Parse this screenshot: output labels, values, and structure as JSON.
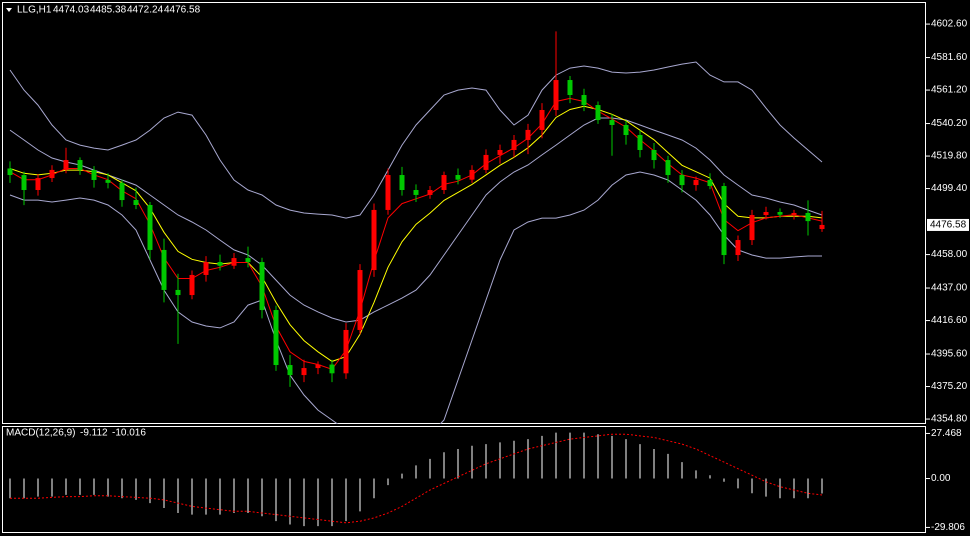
{
  "chart_data": [
    {
      "type": "candlestick",
      "title": "LLG,H1",
      "ohlc_readout": [
        4474.03,
        4485.38,
        4472.24,
        4476.58
      ],
      "up_color": "#ff0000",
      "down_color": "#00c800",
      "open": [
        4512.0,
        4507.9,
        4498.5,
        4506.0,
        4511.1,
        4517.3,
        4511.1,
        4504.8,
        4503.0,
        4492.2,
        4489.1,
        4460.9,
        4435.8,
        4432.6,
        4445.2,
        4453.3,
        4451.0,
        4455.8,
        4453.3,
        4423.2,
        4388.7,
        4382.4,
        4386.8,
        4389.0,
        4383.5,
        4410.7,
        4448.3,
        4486.0,
        4507.9,
        4498.5,
        4495.4,
        4498.5,
        4507.9,
        4505.0,
        4511.1,
        4520.5,
        4523.6,
        4529.9,
        4536.2,
        4548.7,
        4567.5,
        4558.1,
        4551.8,
        4542.4,
        4539.3,
        4533.0,
        4523.6,
        4517.3,
        4507.9,
        4501.6,
        4504.8,
        4501.0,
        4457.7,
        4467.1,
        4482.8,
        4484.7,
        4483.0,
        4484.1,
        4474.03
      ],
      "high": [
        4516.5,
        4510.0,
        4508.5,
        4514.0,
        4525.0,
        4519.0,
        4513.5,
        4509.0,
        4505.0,
        4500.0,
        4491.0,
        4468.0,
        4446.0,
        4448.0,
        4457.0,
        4458.0,
        4459.0,
        4463.0,
        4456.0,
        4426.0,
        4395.0,
        4392.0,
        4391.0,
        4392.0,
        4415.0,
        4452.0,
        4490.0,
        4512.0,
        4513.0,
        4502.0,
        4501.0,
        4510.0,
        4512.0,
        4514.0,
        4524.0,
        4527.0,
        4533.0,
        4540.0,
        4553.0,
        4598.0,
        4570.0,
        4562.0,
        4554.0,
        4546.0,
        4542.0,
        4536.0,
        4528.0,
        4520.0,
        4511.0,
        4507.0,
        4509.0,
        4503.0,
        4470.0,
        4486.0,
        4488.0,
        4487.0,
        4486.0,
        4492.0,
        4485.38
      ],
      "low": [
        4503.0,
        4489.0,
        4495.0,
        4503.5,
        4509.0,
        4508.0,
        4500.0,
        4499.5,
        4488.0,
        4486.5,
        4455.0,
        4428.0,
        4402.0,
        4430.0,
        4441.0,
        4448.0,
        4449.0,
        4450.0,
        4418.0,
        4385.0,
        4375.0,
        4378.0,
        4383.0,
        4378.0,
        4380.0,
        4408.0,
        4444.0,
        4483.0,
        4495.0,
        4491.0,
        4493.0,
        4496.0,
        4502.0,
        4503.0,
        4509.0,
        4515.0,
        4519.0,
        4521.0,
        4531.0,
        4545.0,
        4553.0,
        4548.0,
        4540.0,
        4520.0,
        4527.0,
        4519.0,
        4512.0,
        4503.0,
        4497.0,
        4498.0,
        4499.0,
        4452.0,
        4454.0,
        4464.0,
        4480.0,
        4481.0,
        4480.0,
        4470.0,
        4472.24
      ],
      "close": [
        4507.9,
        4498.5,
        4506.0,
        4511.1,
        4517.3,
        4511.1,
        4504.8,
        4503.0,
        4492.2,
        4489.1,
        4460.9,
        4435.8,
        4432.6,
        4445.2,
        4453.3,
        4451.0,
        4455.8,
        4453.3,
        4423.2,
        4388.7,
        4382.4,
        4386.8,
        4389.0,
        4383.5,
        4410.7,
        4448.3,
        4486.0,
        4507.9,
        4498.5,
        4495.4,
        4498.5,
        4507.9,
        4505.0,
        4511.1,
        4520.5,
        4523.6,
        4529.9,
        4536.2,
        4548.7,
        4567.5,
        4558.1,
        4551.8,
        4542.4,
        4539.3,
        4533.0,
        4523.6,
        4517.3,
        4507.9,
        4501.6,
        4504.8,
        4501.0,
        4457.7,
        4467.1,
        4482.8,
        4484.7,
        4483.0,
        4484.1,
        4479.0,
        4476.58
      ],
      "overlays": [
        {
          "color": "#a8a8d0",
          "values": [
            4573.8,
            4561.2,
            4551.8,
            4539.3,
            4529.9,
            4526.7,
            4524.8,
            4523.6,
            4526.7,
            4529.9,
            4536.1,
            4543.7,
            4547.4,
            4545.5,
            4533.0,
            4517.3,
            4504.8,
            4498.5,
            4495.4,
            4489.1,
            4485.9,
            4484.1,
            4483.4,
            4482.8,
            4480.9,
            4482.8,
            4495.4,
            4511.0,
            4526.7,
            4539.3,
            4548.7,
            4558.1,
            4561.2,
            4562.5,
            4561.2,
            4548.7,
            4539.3,
            4545.5,
            4561.2,
            4570.6,
            4575.0,
            4576.3,
            4575.0,
            4572.5,
            4571.9,
            4572.5,
            4573.8,
            4575.7,
            4577.5,
            4578.8,
            4570.6,
            4566.3,
            4566.3,
            4561.2,
            4549.9,
            4539.3,
            4531.1,
            4523.6,
            4516.1
          ]
        },
        {
          "color": "#a8a8d0",
          "values": [
            4536.1,
            4529.9,
            4523.6,
            4518.6,
            4516.1,
            4514.2,
            4511.0,
            4507.9,
            4504.8,
            4501.6,
            4495.4,
            4489.1,
            4482.8,
            4478.4,
            4473.4,
            4467.1,
            4460.9,
            4457.7,
            4451.4,
            4442.0,
            4432.6,
            4426.3,
            4422.0,
            4418.2,
            4415.7,
            4416.9,
            4422.0,
            4426.3,
            4430.7,
            4435.7,
            4445.2,
            4457.7,
            4470.3,
            4482.8,
            4495.4,
            4503.5,
            4509.8,
            4514.2,
            4520.5,
            4526.7,
            4533.0,
            4539.3,
            4543.7,
            4543.7,
            4542.4,
            4539.3,
            4536.1,
            4533.0,
            4529.9,
            4524.8,
            4517.3,
            4507.9,
            4501.6,
            4495.4,
            4493.5,
            4491.0,
            4489.1,
            4485.9,
            4482.8
          ]
        },
        {
          "color": "#a8a8d0",
          "values": [
            4495.4,
            4492.2,
            4492.2,
            4491.0,
            4492.2,
            4493.5,
            4492.2,
            4489.1,
            4482.8,
            4473.4,
            4454.6,
            4435.7,
            4422.0,
            4415.7,
            4413.2,
            4412.0,
            4415.7,
            4426.3,
            4429.5,
            4404.4,
            4382.4,
            4369.9,
            4360.4,
            4354.2,
            4347.9,
            4341.6,
            4338.5,
            4335.4,
            4335.4,
            4338.5,
            4344.8,
            4354.2,
            4379.3,
            4404.4,
            4429.5,
            4454.6,
            4473.4,
            4478.4,
            4480.9,
            4480.9,
            4482.8,
            4485.9,
            4492.2,
            4501.6,
            4507.9,
            4509.8,
            4507.9,
            4504.8,
            4498.5,
            4492.2,
            4482.8,
            4470.3,
            4460.9,
            4457.7,
            4455.8,
            4455.8,
            4456.5,
            4457.1,
            4457.1
          ]
        },
        {
          "color": "#ffff00",
          "values": [
            4512,
            4509,
            4508,
            4509,
            4511,
            4511,
            4510,
            4508,
            4503,
            4498,
            4487,
            4472,
            4460,
            4455,
            4453,
            4452,
            4453,
            4453,
            4444,
            4428,
            4414,
            4404,
            4397,
            4391,
            4394,
            4408,
            4428,
            4450,
            4466,
            4477,
            4484,
            4492,
            4497,
            4502,
            4508,
            4514,
            4519,
            4525,
            4533,
            4544,
            4549,
            4551,
            4549,
            4546,
            4542,
            4536,
            4530,
            4522,
            4514,
            4510,
            4506,
            4490,
            4482,
            4481,
            4481,
            4482,
            4482,
            4482,
            4481
          ]
        },
        {
          "color": "#ff0000",
          "values": [
            4510,
            4505,
            4505,
            4508,
            4512,
            4512,
            4508,
            4505,
            4498,
            4493,
            4477,
            4456,
            4443,
            4443,
            4448,
            4450,
            4453,
            4453,
            4438,
            4413,
            4397,
            4391,
            4389,
            4386,
            4398,
            4423,
            4454,
            4481,
            4490,
            4493,
            4496,
            4502,
            4504,
            4508,
            4515,
            4520,
            4525,
            4531,
            4540,
            4554,
            4556,
            4554,
            4548,
            4543,
            4538,
            4530,
            4523,
            4515,
            4508,
            4506,
            4503,
            4480,
            4473,
            4478,
            4481,
            4482,
            4483,
            4481,
            4479
          ]
        }
      ],
      "ylim": [
        4351.7,
        4615.2
      ],
      "yticks": [
        {
          "value": 4602.6,
          "label": "4602.60"
        },
        {
          "value": 4581.6,
          "label": "4581.60"
        },
        {
          "value": 4561.2,
          "label": "4561.20"
        },
        {
          "value": 4540.2,
          "label": "4540.20"
        },
        {
          "value": 4519.8,
          "label": "4519.80"
        },
        {
          "value": 4499.4,
          "label": "4499.40"
        },
        {
          "value": 4458.0,
          "label": "4458.00"
        },
        {
          "value": 4437.0,
          "label": "4437.00"
        },
        {
          "value": 4416.6,
          "label": "4416.60"
        },
        {
          "value": 4395.6,
          "label": "4395.60"
        },
        {
          "value": 4375.2,
          "label": "4375.20"
        },
        {
          "value": 4354.8,
          "label": "4354.80"
        }
      ]
    },
    {
      "type": "macd",
      "title": "MACD(12,26,9)",
      "readout": [
        -9.112,
        -10.016
      ],
      "histogram": {
        "color": "#ffffff",
        "values": [
          -12,
          -12,
          -11,
          -11,
          -10,
          -10,
          -10,
          -11,
          -12,
          -13,
          -15,
          -18,
          -21,
          -22,
          -22,
          -22,
          -21,
          -21,
          -23,
          -26,
          -28,
          -29,
          -29,
          -29,
          -26,
          -20,
          -12,
          -4,
          3,
          8,
          12,
          16,
          18,
          20,
          21,
          22,
          23,
          24,
          26,
          28,
          28,
          28,
          27,
          26,
          24,
          21,
          18,
          15,
          10,
          5,
          2,
          -2,
          -6,
          -9,
          -11,
          -12,
          -12,
          -12,
          -9.112
        ]
      },
      "signal": {
        "color": "#ff0000",
        "values": [
          -12,
          -12,
          -12,
          -11.5,
          -11,
          -11,
          -10.5,
          -10.5,
          -11,
          -11.5,
          -12,
          -13,
          -15,
          -17,
          -18,
          -19,
          -20,
          -20,
          -21,
          -22,
          -23,
          -24,
          -25,
          -26,
          -27,
          -26,
          -24,
          -21,
          -17,
          -12,
          -7,
          -3,
          1,
          5,
          9,
          12,
          15,
          18,
          20,
          22,
          24,
          25,
          26,
          27,
          27,
          26,
          25,
          23,
          21,
          18,
          14,
          10,
          6,
          2,
          -2,
          -5,
          -7,
          -9,
          -10.016
        ]
      },
      "ylim": [
        -33.2,
        31.4
      ],
      "yticks": [
        27.468,
        {
          "value": 0,
          "label": "0.00"
        },
        -29.806
      ]
    }
  ]
}
